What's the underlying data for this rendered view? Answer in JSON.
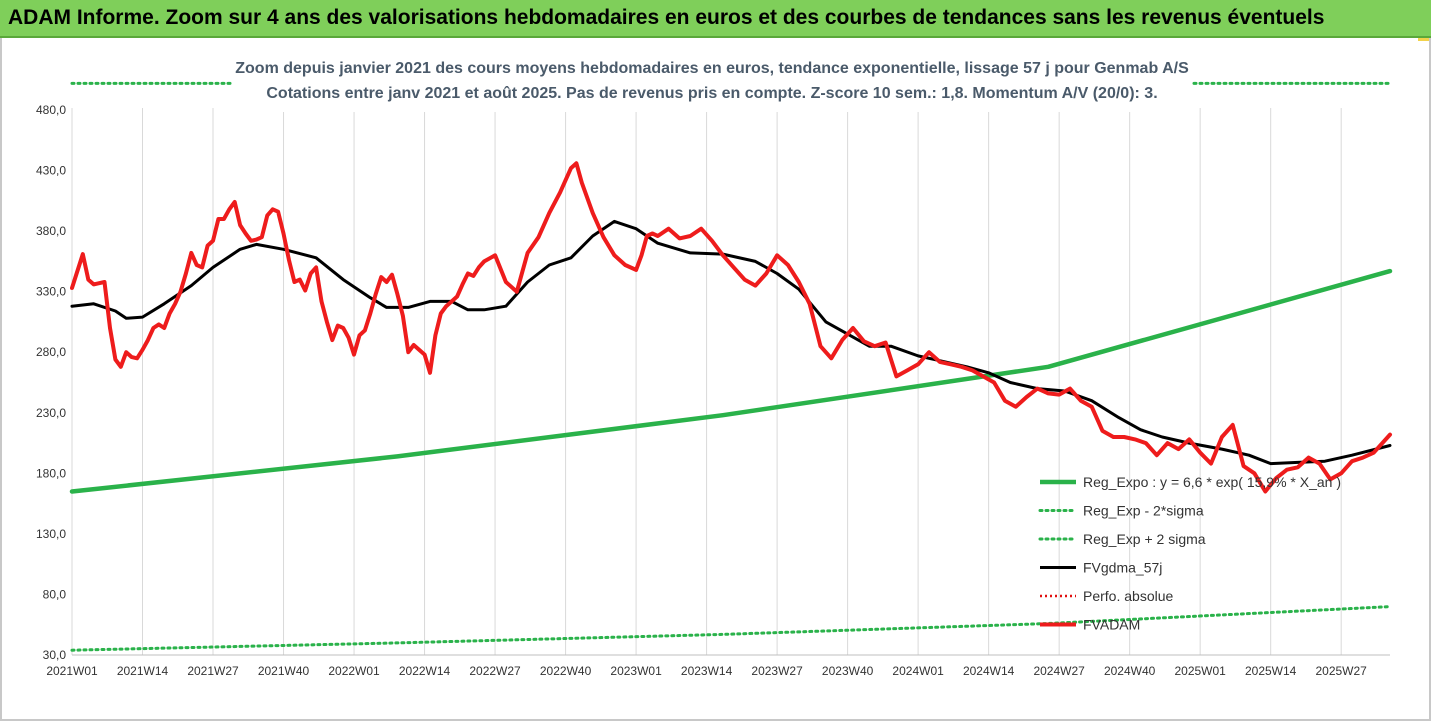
{
  "banner": {
    "title": "ADAM Informe. Zoom sur 4 ans des valorisations hebdomadaires en euros et des courbes de tendances sans les revenus éventuels"
  },
  "colors": {
    "banner_bg": "#7fcf5a",
    "reg_expo": "#2ab24a",
    "fvadam": "#ee1c1c",
    "fvgdma": "#000000",
    "perfo": "#e01010"
  },
  "chart_data": {
    "type": "line",
    "title_line1": "Zoom depuis janvier 2021 des cours moyens hebdomadaires en euros, tendance exponentielle, lissage 57 j pour Genmab A/S",
    "title_line2": "Cotations entre janv 2021 et août 2025.  Pas de revenus pris en compte. Z-score 10 sem.: 1,8. Momentum A/V (20/0): 3.",
    "xlabel": "",
    "ylabel": "",
    "ylim": [
      30,
      480
    ],
    "y_ticks": [
      "480,0",
      "430,0",
      "380,0",
      "330,0",
      "280,0",
      "230,0",
      "180,0",
      "130,0",
      "80,0",
      "30,0"
    ],
    "y_tick_values": [
      480,
      430,
      380,
      330,
      280,
      230,
      180,
      130,
      80,
      30
    ],
    "x_ticks": [
      "2021W01",
      "2021W14",
      "2021W27",
      "2021W40",
      "2022W01",
      "2022W14",
      "2022W27",
      "2022W40",
      "2023W01",
      "2023W14",
      "2023W27",
      "2023W40",
      "2024W01",
      "2024W14",
      "2024W27",
      "2024W40",
      "2025W01",
      "2025W14",
      "2025W27"
    ],
    "x_tick_weeks": [
      0,
      13,
      26,
      39,
      52,
      65,
      78,
      91,
      104,
      117,
      130,
      143,
      156,
      169,
      182,
      195,
      208,
      221,
      234
    ],
    "grid": "vertical",
    "legend_position": "bottom-right",
    "legend": [
      "Reg_Expo : y = 6,6 * exp( 15,9% * X_an )",
      "Reg_Exp - 2*sigma",
      "Reg_Exp + 2 sigma",
      "FVgdma_57j",
      "Perfo. absolue",
      "FVADAM"
    ],
    "series": [
      {
        "name": "Reg_Expo : y = 6,6 * exp( 15,9% * X_an )",
        "style": "solid-green",
        "x": [
          0,
          60,
          120,
          180,
          243
        ],
        "values": [
          165,
          194,
          228,
          268,
          347
        ]
      },
      {
        "name": "Reg_Exp - 2*sigma",
        "style": "dotted-green",
        "x": [
          0,
          60,
          120,
          180,
          243
        ],
        "values": [
          34,
          40,
          47,
          56,
          70
        ]
      },
      {
        "name": "Reg_Exp + 2 sigma",
        "style": "dotted-green",
        "x": [
          0,
          243
        ],
        "values": [
          502,
          502
        ]
      },
      {
        "name": "FVgdma_57j",
        "style": "solid-black",
        "x": [
          0,
          4,
          8,
          10,
          13,
          17,
          22,
          26,
          31,
          34,
          39,
          45,
          50,
          55,
          58,
          62,
          66,
          70,
          73,
          76,
          80,
          84,
          88,
          92,
          96,
          100,
          104,
          108,
          114,
          120,
          126,
          130,
          134,
          139,
          143,
          147,
          151,
          156,
          160,
          165,
          169,
          173,
          178,
          183,
          188,
          193,
          197,
          201,
          206,
          212,
          217,
          221,
          226,
          231,
          236,
          243
        ],
        "values": [
          318,
          320,
          314,
          308,
          309,
          320,
          335,
          350,
          365,
          369,
          365,
          358,
          340,
          325,
          317,
          317,
          322,
          322,
          315,
          315,
          318,
          338,
          352,
          358,
          376,
          388,
          382,
          370,
          362,
          361,
          355,
          345,
          332,
          305,
          295,
          285,
          285,
          277,
          273,
          268,
          263,
          255,
          250,
          248,
          240,
          226,
          216,
          210,
          205,
          200,
          195,
          188,
          189,
          190,
          195,
          203
        ]
      },
      {
        "name": "Perfo. absolue",
        "style": "dotted-red",
        "x": [],
        "values": []
      },
      {
        "name": "FVADAM",
        "style": "solid-red",
        "x": [
          0,
          2,
          3,
          4,
          5,
          6,
          7,
          8,
          9,
          10,
          11,
          12,
          13,
          14,
          15,
          16,
          17,
          18,
          19,
          20,
          21,
          22,
          23,
          24,
          25,
          26,
          27,
          28,
          29,
          30,
          31,
          32,
          33,
          34,
          35,
          36,
          37,
          38,
          39,
          40,
          41,
          42,
          43,
          44,
          45,
          46,
          47,
          48,
          49,
          50,
          51,
          52,
          53,
          54,
          55,
          56,
          57,
          58,
          59,
          60,
          61,
          62,
          63,
          64,
          65,
          66,
          67,
          68,
          69,
          70,
          71,
          72,
          73,
          74,
          75,
          76,
          78,
          80,
          82,
          84,
          86,
          88,
          90,
          92,
          93,
          94,
          96,
          98,
          100,
          102,
          104,
          105,
          106,
          107,
          108,
          110,
          112,
          114,
          116,
          118,
          120,
          122,
          124,
          126,
          128,
          130,
          132,
          134,
          136,
          138,
          140,
          142,
          144,
          146,
          148,
          150,
          152,
          154,
          156,
          158,
          160,
          162,
          164,
          166,
          168,
          170,
          172,
          174,
          176,
          178,
          180,
          182,
          184,
          186,
          188,
          190,
          192,
          194,
          196,
          198,
          200,
          202,
          204,
          206,
          208,
          210,
          212,
          214,
          216,
          218,
          220,
          222,
          224,
          226,
          228,
          230,
          232,
          234,
          236,
          238,
          240,
          243
        ],
        "values": [
          333,
          361,
          340,
          336,
          337,
          338,
          300,
          274,
          268,
          280,
          276,
          275,
          282,
          290,
          300,
          303,
          300,
          312,
          320,
          330,
          345,
          362,
          352,
          350,
          368,
          372,
          390,
          390,
          398,
          404,
          385,
          378,
          372,
          373,
          375,
          393,
          398,
          396,
          378,
          356,
          338,
          340,
          331,
          345,
          350,
          322,
          305,
          290,
          302,
          300,
          292,
          278,
          294,
          298,
          312,
          328,
          342,
          338,
          344,
          328,
          310,
          280,
          286,
          282,
          278,
          263,
          294,
          312,
          318,
          322,
          326,
          336,
          345,
          343,
          350,
          355,
          360,
          338,
          330,
          362,
          375,
          395,
          412,
          432,
          436,
          420,
          395,
          375,
          360,
          352,
          348,
          360,
          376,
          378,
          376,
          382,
          374,
          376,
          382,
          372,
          360,
          350,
          340,
          335,
          345,
          360,
          352,
          338,
          320,
          285,
          275,
          290,
          300,
          289,
          285,
          288,
          260,
          265,
          270,
          280,
          272,
          270,
          268,
          265,
          260,
          255,
          240,
          235,
          243,
          250,
          246,
          245,
          250,
          240,
          235,
          215,
          210,
          210,
          208,
          205,
          195,
          205,
          200,
          208,
          197,
          188,
          210,
          220,
          186,
          180,
          165,
          176,
          183,
          185,
          193,
          188,
          175,
          180,
          190,
          193,
          197,
          212
        ]
      }
    ],
    "x_range": [
      0,
      243
    ]
  }
}
